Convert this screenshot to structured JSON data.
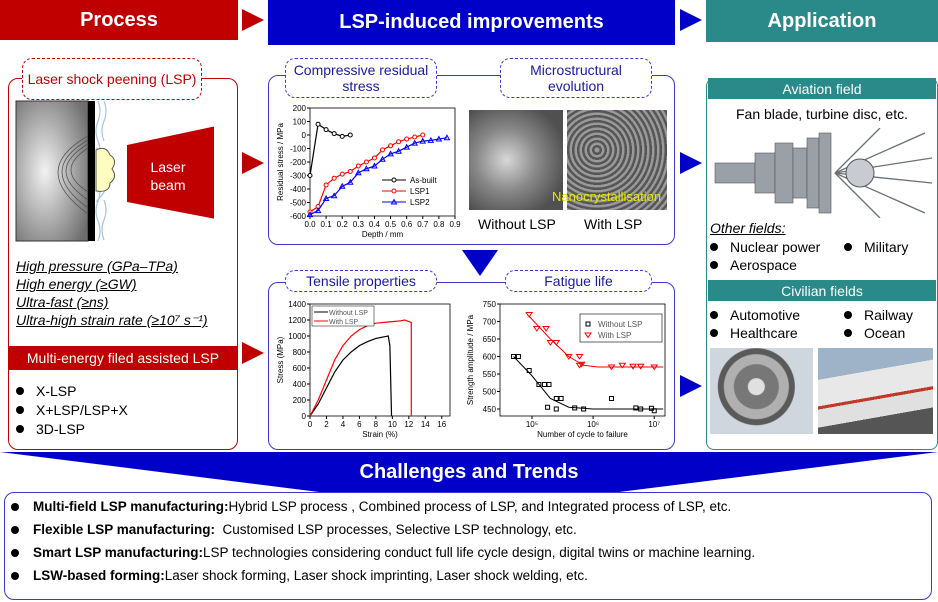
{
  "header": {
    "process": "Process",
    "improvements": "LSP-induced improvements",
    "application": "Application"
  },
  "colors": {
    "red": "#c00000",
    "blue": "#0000c8",
    "teal": "#2a8a8a"
  },
  "process": {
    "title": "Laser shock peening (LSP)",
    "beam": "Laser beam",
    "features": [
      "High pressure (GPa–TPa)",
      "High energy (≥GW)",
      "Ultra-fast (≥ns)",
      "Ultra-high strain rate (≥10⁷ s⁻¹)"
    ],
    "multi_title": "Multi-energy filed assisted LSP",
    "multi_items": [
      "X-LSP",
      "X+LSP/LSP+X",
      "3D-LSP"
    ]
  },
  "improvements": {
    "residual": "Compressive residual stress",
    "micro": "Microstructural evolution",
    "nano": "Nanocrystallisation",
    "without": "Without LSP",
    "with": "With LSP",
    "tensile": "Tensile properties",
    "fatigue": "Fatigue life"
  },
  "application": {
    "aviation": "Aviation field",
    "aviation_desc": "Fan blade, turbine disc, etc.",
    "other": "Other fields:",
    "other_items": [
      "Nuclear power",
      "Military",
      "Aerospace"
    ],
    "civilian": "Civilian fields",
    "civilian_items": [
      "Automotive",
      "Railway",
      "Healthcare",
      "Ocean"
    ]
  },
  "challenges": {
    "title": "Challenges and Trends",
    "items": [
      {
        "bold": "Multi-field LSP manufacturing:",
        "text": " Hybrid LSP process , Combined process of LSP, and Integrated process of LSP, etc."
      },
      {
        "bold": "Flexible  LSP manufacturing:",
        "text": "  Customised LSP processes, Selective LSP technology, etc."
      },
      {
        "bold": "Smart LSP manufacturing:",
        "text": " LSP technologies considering conduct full life cycle design, digital twins or machine learning."
      },
      {
        "bold": "LSW-based forming:",
        "text": " Laser shock forming, Laser shock imprinting, Laser shock welding, etc."
      }
    ]
  },
  "chart_data": [
    {
      "type": "line",
      "xlabel": "Depth / mm",
      "ylabel": "Residual stress / MPa",
      "xlim": [
        0,
        0.9
      ],
      "ylim": [
        -600,
        200
      ],
      "xticks": [
        "0.0",
        "0.1",
        "0.2",
        "0.3",
        "0.4",
        "0.5",
        "0.6",
        "0.7",
        "0.8",
        "0.9"
      ],
      "yticks": [
        200,
        100,
        0,
        -100,
        -200,
        -300,
        -400,
        -500,
        -600
      ],
      "legend": "bottom-right",
      "series": [
        {
          "name": "As-built",
          "color": "#000000",
          "marker": "circle",
          "x": [
            0,
            0.05,
            0.1,
            0.15,
            0.2,
            0.25
          ],
          "y": [
            -300,
            80,
            40,
            10,
            -10,
            0
          ]
        },
        {
          "name": "LSP1",
          "color": "#ff0000",
          "marker": "circle",
          "x": [
            0,
            0.05,
            0.1,
            0.15,
            0.2,
            0.25,
            0.3,
            0.35,
            0.4,
            0.45,
            0.5,
            0.55,
            0.6,
            0.65,
            0.7
          ],
          "y": [
            -570,
            -530,
            -370,
            -320,
            -290,
            -270,
            -230,
            -200,
            -170,
            -110,
            -80,
            -50,
            -30,
            -15,
            0
          ]
        },
        {
          "name": "LSP2",
          "color": "#0000ff",
          "marker": "triangle",
          "x": [
            0,
            0.05,
            0.1,
            0.15,
            0.2,
            0.25,
            0.3,
            0.35,
            0.4,
            0.45,
            0.5,
            0.55,
            0.6,
            0.65,
            0.7,
            0.75,
            0.8,
            0.85
          ],
          "y": [
            -590,
            -560,
            -470,
            -450,
            -380,
            -350,
            -280,
            -250,
            -230,
            -180,
            -140,
            -120,
            -90,
            -60,
            -45,
            -40,
            -30,
            -20
          ]
        }
      ]
    },
    {
      "type": "line",
      "xlabel": "Strain (%)",
      "ylabel": "Stress (MPa)",
      "xlim": [
        0,
        17
      ],
      "ylim": [
        0,
        1400
      ],
      "xticks": [
        0,
        2,
        4,
        6,
        8,
        10,
        12,
        14,
        16
      ],
      "yticks": [
        0,
        200,
        400,
        600,
        800,
        1000,
        1200,
        1400
      ],
      "legend": "top-left",
      "series": [
        {
          "name": "Without LSP",
          "color": "#000000",
          "x": [
            0,
            1,
            2,
            3,
            4,
            5,
            6,
            7,
            8,
            9,
            9.5,
            9.7,
            9.9
          ],
          "y": [
            0,
            150,
            350,
            550,
            700,
            800,
            880,
            930,
            970,
            990,
            1000,
            880,
            0
          ]
        },
        {
          "name": "With LSP",
          "color": "#ff0000",
          "x": [
            0,
            1,
            2,
            3,
            4,
            5,
            6,
            7,
            8,
            9,
            10,
            11,
            11.5,
            12,
            12.3,
            12.3
          ],
          "y": [
            0,
            200,
            450,
            700,
            880,
            1000,
            1080,
            1130,
            1160,
            1170,
            1180,
            1190,
            1200,
            1180,
            1170,
            0
          ]
        }
      ]
    },
    {
      "type": "scatter",
      "xlabel": "Number of cycle to failure",
      "ylabel": "Strength amplitude / MPa",
      "xscale": "log",
      "xlim": [
        30000,
        15000000
      ],
      "ylim": [
        430,
        750
      ],
      "xticks": [
        "10⁵",
        "10⁶",
        "10⁷"
      ],
      "xtick_values": [
        100000,
        1000000,
        10000000
      ],
      "yticks": [
        450,
        500,
        550,
        600,
        650,
        700,
        750
      ],
      "legend": "top-right",
      "series": [
        {
          "name": "Without LSP",
          "color": "#000000",
          "marker": "square",
          "x": [
            50000,
            60000,
            90000,
            130000,
            160000,
            190000,
            180000,
            250000,
            300000,
            250000,
            500000,
            700000,
            2000000,
            5000000,
            6000000,
            9000000,
            10000000
          ],
          "y": [
            600,
            600,
            560,
            520,
            520,
            520,
            455,
            480,
            480,
            450,
            453,
            450,
            480,
            453,
            450,
            452,
            445
          ],
          "fit_x": [
            50000,
            100000,
            200000,
            400000,
            1000000,
            10000000,
            14000000
          ],
          "fit_y": [
            600,
            545,
            480,
            455,
            450,
            450,
            450
          ]
        },
        {
          "name": "With LSP",
          "color": "#ff0000",
          "marker": "triangle-down",
          "x": [
            90000,
            120000,
            170000,
            200000,
            250000,
            400000,
            600000,
            600000,
            650000,
            2000000,
            3000000,
            4500000,
            6000000,
            10000000
          ],
          "y": [
            720,
            680,
            680,
            640,
            640,
            600,
            600,
            575,
            578,
            570,
            575,
            572,
            572,
            570
          ],
          "fit_x": [
            90000,
            200000,
            400000,
            700000,
            1200000,
            10000000,
            14000000
          ],
          "fit_y": [
            715,
            650,
            600,
            575,
            570,
            570,
            570
          ]
        }
      ]
    }
  ]
}
